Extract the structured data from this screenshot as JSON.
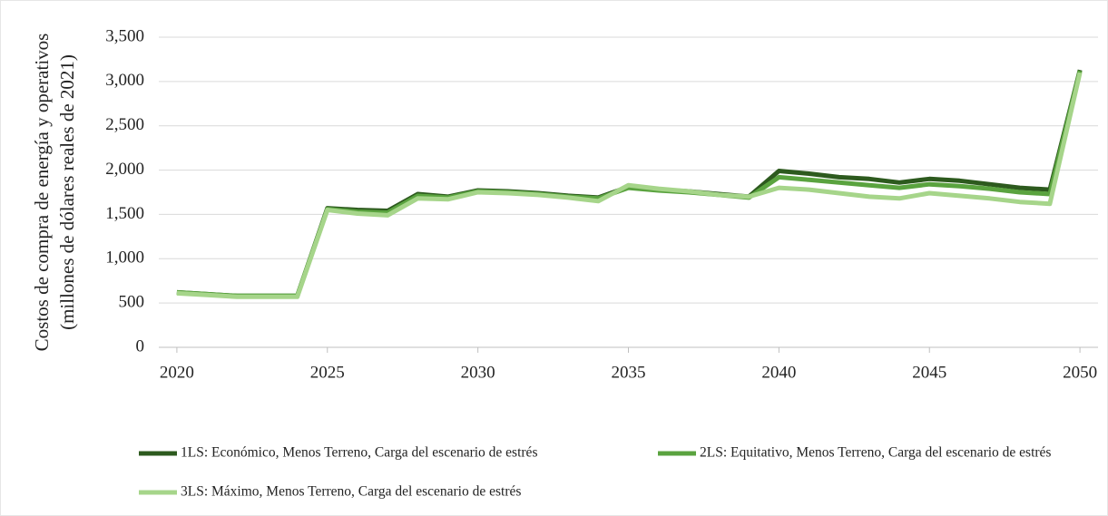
{
  "chart_data": {
    "type": "line",
    "ylabel": [
      "Costos de compra de energía y operativos",
      "(millones de dólares reales de 2021)"
    ],
    "x": [
      2020,
      2021,
      2022,
      2023,
      2024,
      2025,
      2026,
      2027,
      2028,
      2029,
      2030,
      2031,
      2032,
      2033,
      2034,
      2035,
      2036,
      2037,
      2038,
      2039,
      2040,
      2041,
      2042,
      2043,
      2044,
      2045,
      2046,
      2047,
      2048,
      2049,
      2050
    ],
    "xlim": [
      2019.4,
      2050.6
    ],
    "xticks": [
      2020,
      2025,
      2030,
      2035,
      2040,
      2045,
      2050
    ],
    "ylim": [
      0,
      3500
    ],
    "yticks": [
      0,
      500,
      {
        "value": 1000,
        "label": "1,000"
      },
      {
        "value": 1500,
        "label": "1,500"
      },
      {
        "value": 2000,
        "label": "2,000"
      },
      {
        "value": 2500,
        "label": "2,500"
      },
      {
        "value": 3000,
        "label": "3,000"
      },
      {
        "value": 3500,
        "label": "3,500"
      }
    ],
    "grid": true,
    "legend": "bottom",
    "series": [
      {
        "name": "1LS: Económico, Menos Terreno, Carga del escenario de estrés",
        "color": "#2d5a1e",
        "values": [
          620,
          600,
          580,
          580,
          580,
          1570,
          1550,
          1540,
          1730,
          1700,
          1770,
          1760,
          1740,
          1710,
          1690,
          1810,
          1780,
          1760,
          1730,
          1700,
          1990,
          1960,
          1920,
          1900,
          1860,
          1900,
          1880,
          1840,
          1800,
          1780,
          3130
        ]
      },
      {
        "name": "2LS: Equitativo, Menos Terreno, Carga del escenario de estrés",
        "color": "#5aa33f",
        "values": [
          620,
          600,
          580,
          580,
          580,
          1560,
          1530,
          1520,
          1710,
          1690,
          1760,
          1750,
          1730,
          1700,
          1680,
          1800,
          1770,
          1750,
          1720,
          1690,
          1920,
          1890,
          1860,
          1830,
          1800,
          1840,
          1820,
          1790,
          1750,
          1730,
          3120
        ]
      },
      {
        "name": "3LS: Máximo, Menos Terreno, Carga del escenario de estrés",
        "color": "#a6d58a",
        "values": [
          610,
          590,
          570,
          570,
          570,
          1550,
          1510,
          1490,
          1680,
          1670,
          1750,
          1740,
          1720,
          1690,
          1650,
          1830,
          1790,
          1760,
          1720,
          1700,
          1800,
          1780,
          1740,
          1700,
          1680,
          1740,
          1710,
          1680,
          1640,
          1620,
          3100
        ]
      }
    ]
  }
}
